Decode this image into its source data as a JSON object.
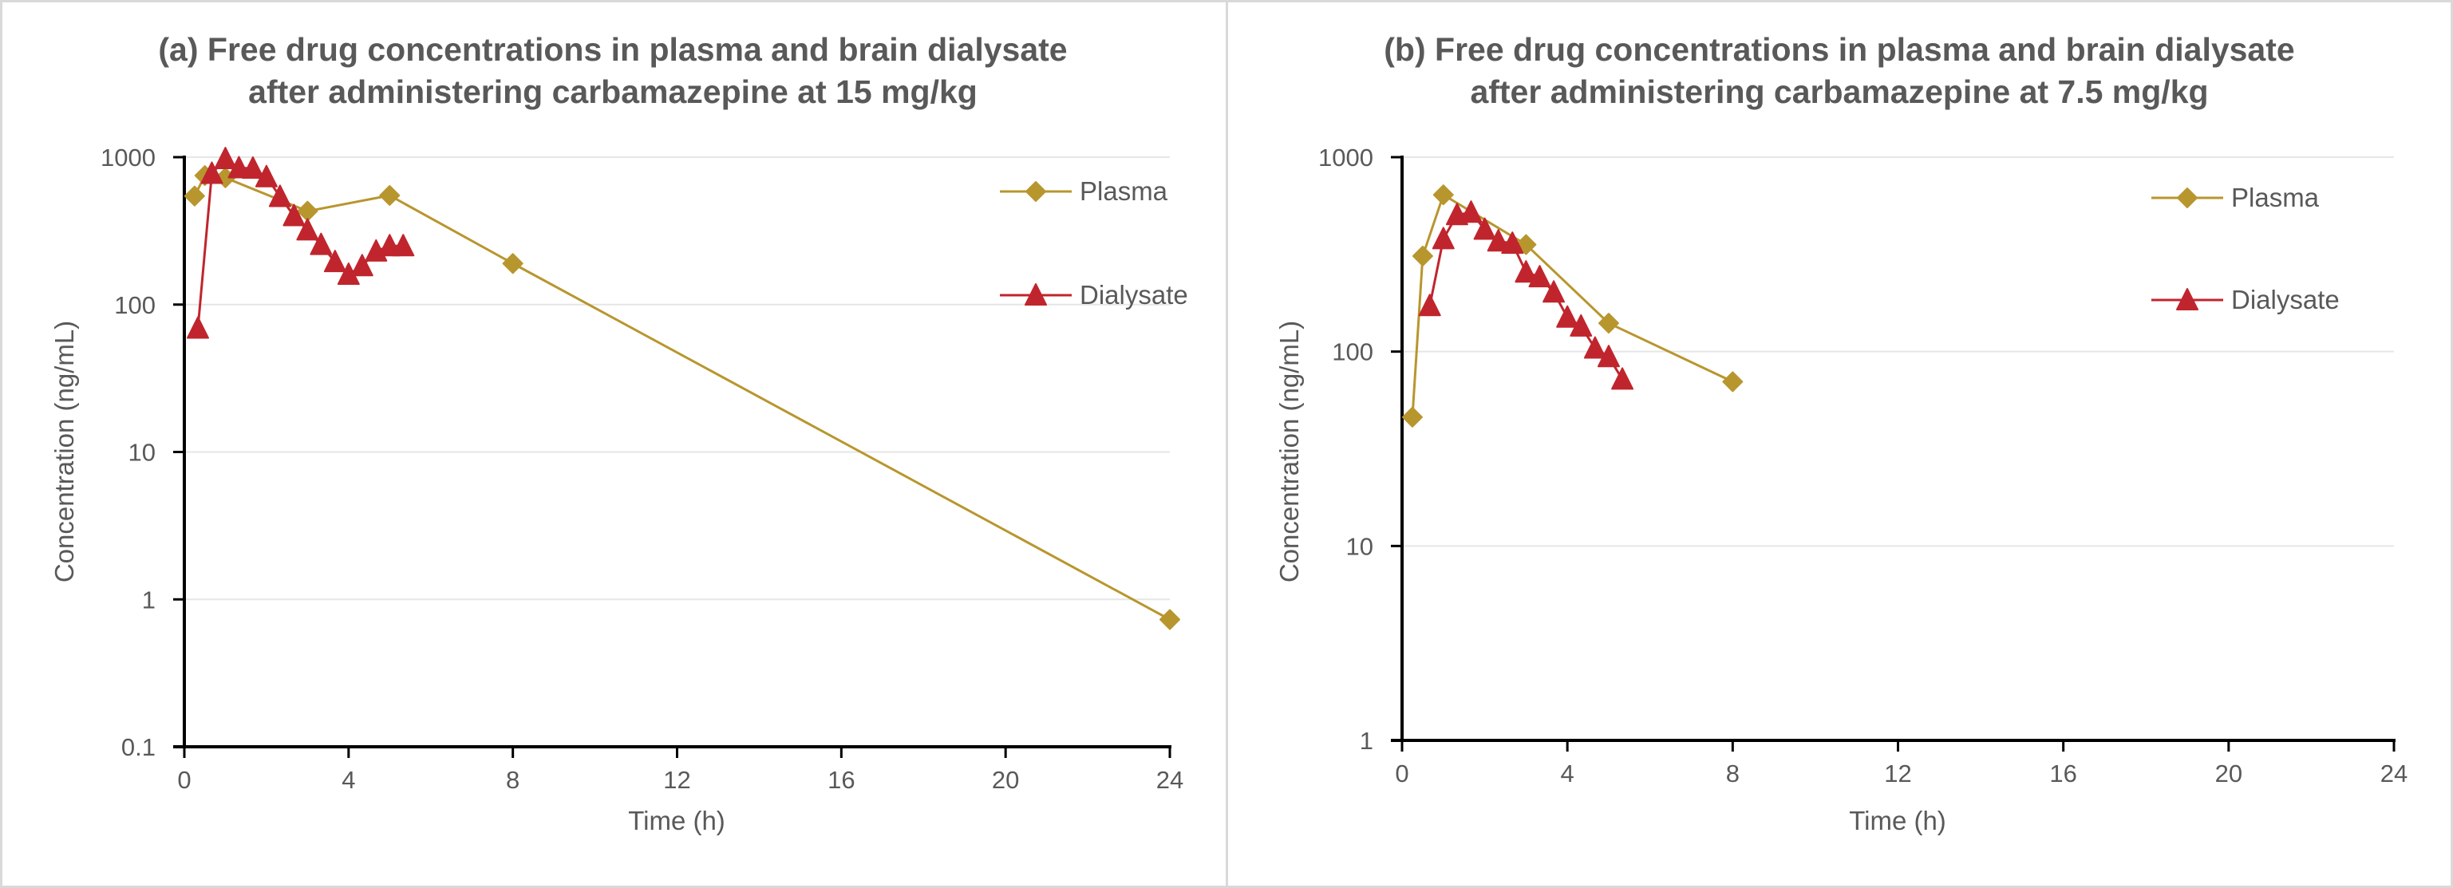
{
  "chart_data": [
    {
      "type": "line",
      "title": "(a) Free drug concentrations in plasma and brain dialysate after administering carbamazepine at 15 mg/kg",
      "title_lines": [
        "(a) Free drug concentrations in plasma and brain dialysate",
        "after administering carbamazepine at 15 mg/kg"
      ],
      "xlabel": "Time (h)",
      "ylabel": "Concentration (ng/mL)",
      "xlim": [
        0,
        24
      ],
      "ylim": [
        0.1,
        1000
      ],
      "yscale": "log",
      "x_ticks": [
        0,
        4,
        8,
        12,
        16,
        20,
        24
      ],
      "y_ticks": [
        0.1,
        1,
        10,
        100,
        1000
      ],
      "y_tick_labels": [
        "0.1",
        "1",
        "10",
        "100",
        "1000"
      ],
      "grid": "horizontal",
      "legend_position": "top-right",
      "series": [
        {
          "name": "Plasma",
          "color": "#B8962E",
          "marker": "diamond",
          "x": [
            0.25,
            0.5,
            1,
            3,
            5,
            8,
            24
          ],
          "y": [
            545,
            750,
            725,
            430,
            550,
            190,
            0.73
          ]
        },
        {
          "name": "Dialysate",
          "color": "#C0252D",
          "marker": "triangle",
          "x": [
            0.33,
            0.67,
            1,
            1.33,
            1.67,
            2,
            2.33,
            2.67,
            3,
            3.33,
            3.67,
            4,
            4.33,
            4.67,
            5,
            5.33
          ],
          "y": [
            69,
            775,
            975,
            845,
            840,
            735,
            540,
            400,
            320,
            255,
            195,
            160,
            183,
            230,
            250,
            250
          ]
        }
      ]
    },
    {
      "type": "line",
      "title": "(b) Free drug concentrations in plasma and brain dialysate after administering carbamazepine at 7.5 mg/kg",
      "title_lines": [
        "(b) Free drug concentrations in plasma and brain dialysate",
        "after administering carbamazepine at 7.5 mg/kg"
      ],
      "xlabel": "Time (h)",
      "ylabel": "Concentration (ng/mL)",
      "xlim": [
        0,
        24
      ],
      "ylim": [
        1,
        1000
      ],
      "yscale": "log",
      "x_ticks": [
        0,
        4,
        8,
        12,
        16,
        20,
        24
      ],
      "y_ticks": [
        1,
        10,
        100,
        1000
      ],
      "y_tick_labels": [
        "1",
        "10",
        "100",
        "1000"
      ],
      "grid": "horizontal",
      "legend_position": "top-right",
      "series": [
        {
          "name": "Plasma",
          "color": "#B8962E",
          "marker": "diamond",
          "x": [
            0.25,
            0.5,
            1,
            3,
            5,
            8
          ],
          "y": [
            46,
            310,
            640,
            355,
            140,
            70
          ]
        },
        {
          "name": "Dialysate",
          "color": "#C0252D",
          "marker": "triangle",
          "x": [
            0.67,
            1,
            1.33,
            1.67,
            2,
            2.33,
            2.67,
            3,
            3.33,
            3.67,
            4,
            4.33,
            4.67,
            5,
            5.33
          ],
          "y": [
            172,
            380,
            505,
            520,
            425,
            370,
            360,
            256,
            242,
            202,
            150,
            135,
            104,
            94,
            72
          ]
        }
      ]
    }
  ]
}
